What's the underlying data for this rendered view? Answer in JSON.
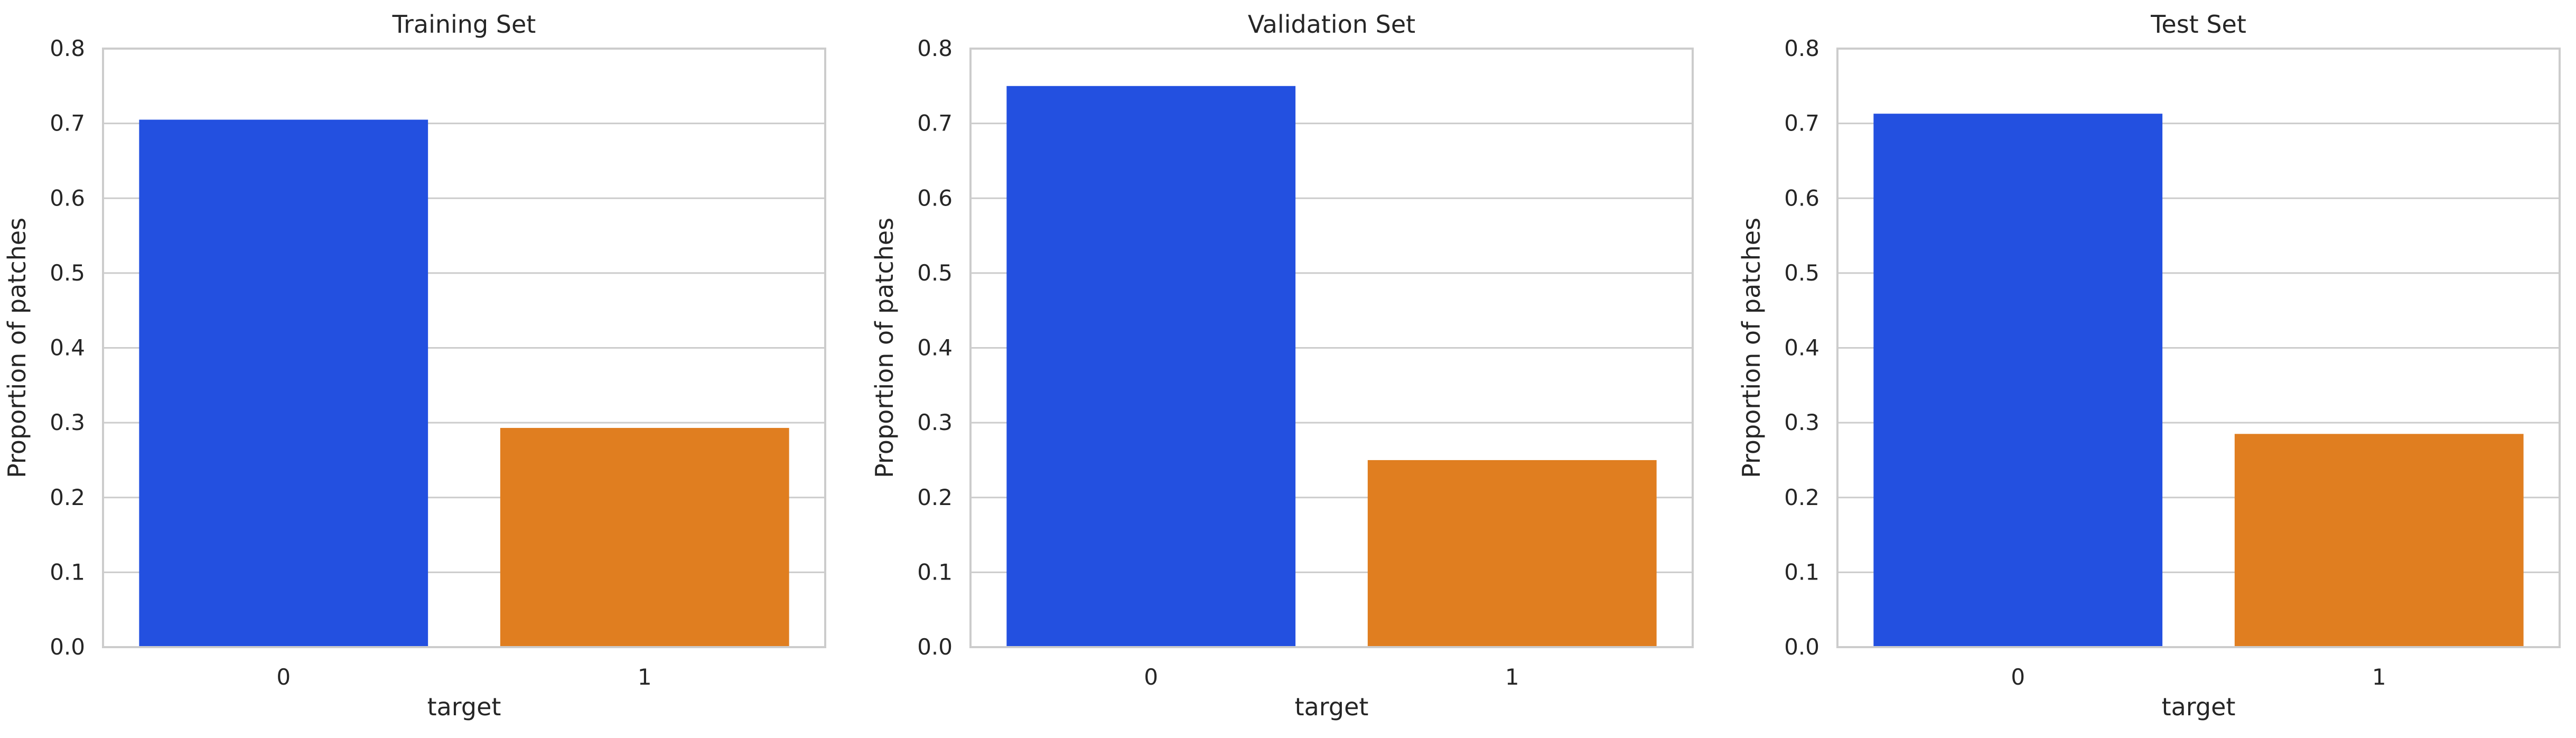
{
  "chart_data": [
    {
      "type": "bar",
      "title": "Training Set",
      "xlabel": "target",
      "ylabel": "Proportion of patches",
      "categories": [
        "0",
        "1"
      ],
      "values": [
        0.705,
        0.293
      ],
      "colors": [
        "#2350e0",
        "#e07e20"
      ],
      "ylim": [
        0,
        0.8
      ],
      "yticks": [
        "0.0",
        "0.1",
        "0.2",
        "0.3",
        "0.4",
        "0.5",
        "0.6",
        "0.7",
        "0.8"
      ],
      "grid": true
    },
    {
      "type": "bar",
      "title": "Validation Set",
      "xlabel": "target",
      "ylabel": "Proportion of patches",
      "categories": [
        "0",
        "1"
      ],
      "values": [
        0.75,
        0.25
      ],
      "colors": [
        "#2350e0",
        "#e07e20"
      ],
      "ylim": [
        0,
        0.8
      ],
      "yticks": [
        "0.0",
        "0.1",
        "0.2",
        "0.3",
        "0.4",
        "0.5",
        "0.6",
        "0.7",
        "0.8"
      ],
      "grid": true
    },
    {
      "type": "bar",
      "title": "Test Set",
      "xlabel": "target",
      "ylabel": "Proportion of patches",
      "categories": [
        "0",
        "1"
      ],
      "values": [
        0.713,
        0.285
      ],
      "colors": [
        "#2350e0",
        "#e07e20"
      ],
      "ylim": [
        0,
        0.8
      ],
      "yticks": [
        "0.0",
        "0.1",
        "0.2",
        "0.3",
        "0.4",
        "0.5",
        "0.6",
        "0.7",
        "0.8"
      ],
      "grid": true
    }
  ]
}
